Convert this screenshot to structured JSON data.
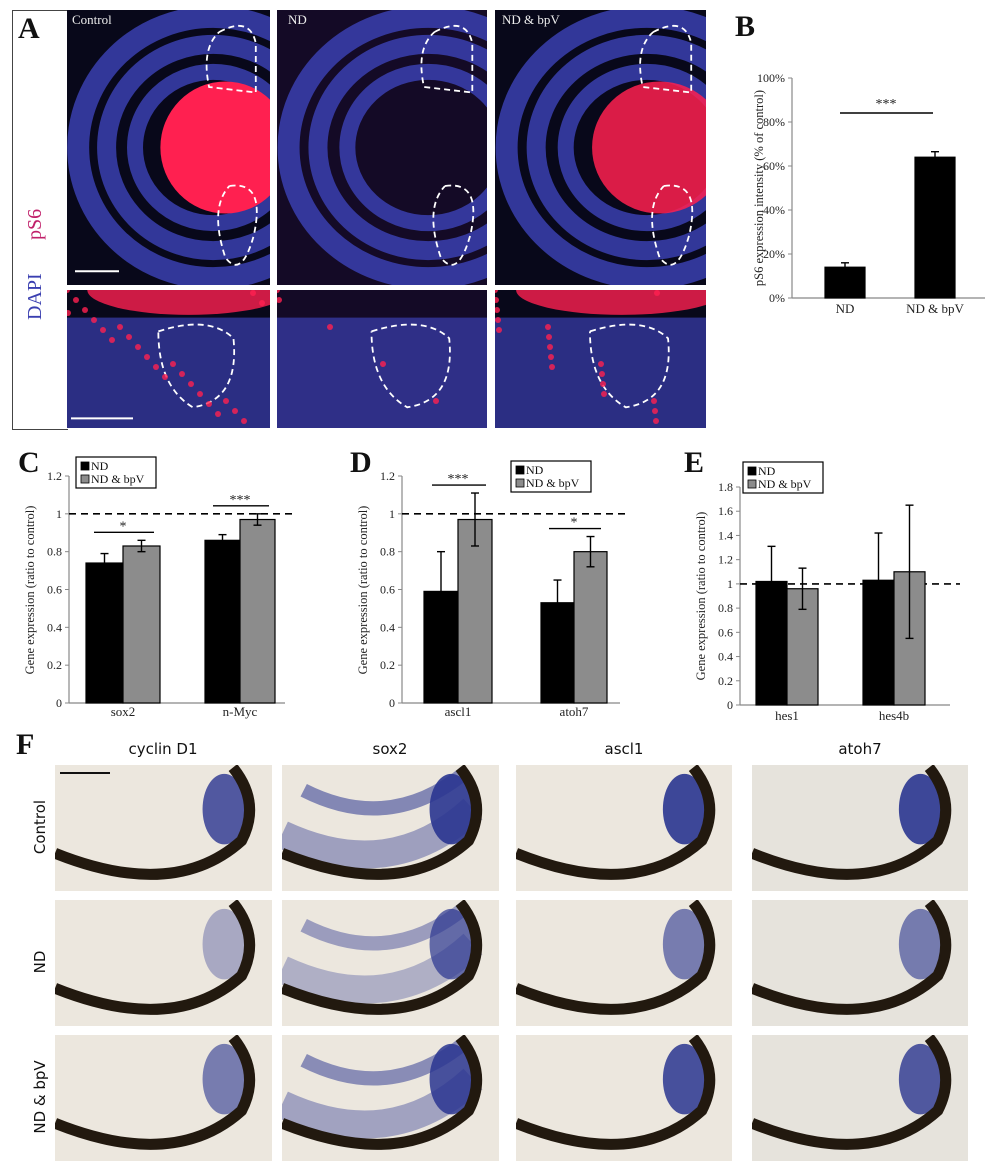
{
  "panel_a": {
    "letter": "A",
    "stain_blue": "DAPI",
    "stain_red": "pS6",
    "columns": [
      "Control",
      "ND",
      "ND & bpV"
    ],
    "colors": {
      "dapi": "#3a3fb0",
      "ps6": "#ff2050",
      "background": "#08081a"
    }
  },
  "panel_f": {
    "letter": "F",
    "columns": [
      "cyclin D1",
      "sox2",
      "ascl1",
      "atoh7"
    ],
    "rows": [
      "Control",
      "ND",
      "ND & bpV"
    ],
    "colors": {
      "stain": "#2a3590",
      "tissue": "#ece7de",
      "pigment": "#22190f"
    }
  },
  "chart_data": [
    {
      "id": "B",
      "letter": "B",
      "type": "bar",
      "ylabel": "pS6 expression intensity (% of control)",
      "categories": [
        "ND",
        "ND & bpV"
      ],
      "ylim": [
        0,
        100
      ],
      "yticks": [
        "0%",
        "20%",
        "40%",
        "60%",
        "80%",
        "100%"
      ],
      "ytick_values": [
        0,
        20,
        40,
        60,
        80,
        100
      ],
      "series": [
        {
          "values": [
            14,
            64
          ],
          "errors": [
            2,
            2.5
          ],
          "color": "#000000"
        }
      ],
      "significance": [
        {
          "text": "***",
          "between": [
            "ND",
            "ND & bpV"
          ]
        }
      ]
    },
    {
      "id": "C",
      "letter": "C",
      "type": "bar",
      "ylabel": "Gene expression  (ratio to control)",
      "categories": [
        "sox2",
        "n-Myc"
      ],
      "ylim": [
        0,
        1.2
      ],
      "yticks": [
        "0",
        "0.2",
        "0.4",
        "0.6",
        "0.8",
        "1",
        "1.2"
      ],
      "ytick_values": [
        0,
        0.2,
        0.4,
        0.6,
        0.8,
        1,
        1.2
      ],
      "reference_line": 1,
      "legend_position": "top-left",
      "series": [
        {
          "name": "ND",
          "values": [
            0.74,
            0.86
          ],
          "errors": [
            0.05,
            0.03
          ],
          "color": "#000000"
        },
        {
          "name": "ND & bpV",
          "values": [
            0.83,
            0.97
          ],
          "errors": [
            0.03,
            0.03
          ],
          "color": "#8c8c8c"
        }
      ],
      "significance": [
        {
          "text": "*",
          "category": "sox2"
        },
        {
          "text": "***",
          "category": "n-Myc"
        }
      ]
    },
    {
      "id": "D",
      "letter": "D",
      "type": "bar",
      "ylabel": "Gene expression  (ratio to control)",
      "categories": [
        "ascl1",
        "atoh7"
      ],
      "ylim": [
        0,
        1.2
      ],
      "yticks": [
        "0",
        "0.2",
        "0.4",
        "0.6",
        "0.8",
        "1",
        "1.2"
      ],
      "ytick_values": [
        0,
        0.2,
        0.4,
        0.6,
        0.8,
        1,
        1.2
      ],
      "reference_line": 1,
      "legend_position": "top-right",
      "series": [
        {
          "name": "ND",
          "values": [
            0.59,
            0.53
          ],
          "errors": [
            0.21,
            0.12
          ],
          "color": "#000000"
        },
        {
          "name": "ND & bpV",
          "values": [
            0.97,
            0.8
          ],
          "errors": [
            0.14,
            0.08
          ],
          "color": "#8c8c8c"
        }
      ],
      "significance": [
        {
          "text": "***",
          "category": "ascl1"
        },
        {
          "text": "*",
          "category": "atoh7"
        }
      ]
    },
    {
      "id": "E",
      "letter": "E",
      "type": "bar",
      "ylabel": "Gene expression  (ratio to control)",
      "categories": [
        "hes1",
        "hes4b"
      ],
      "ylim": [
        0,
        1.8
      ],
      "yticks": [
        "0",
        "0.2",
        "0.4",
        "0.6",
        "0.8",
        "1",
        "1.2",
        "1.4",
        "1.6",
        "1.8"
      ],
      "ytick_values": [
        0,
        0.2,
        0.4,
        0.6,
        0.8,
        1,
        1.2,
        1.4,
        1.6,
        1.8
      ],
      "reference_line": 1,
      "legend_position": "top-left",
      "series": [
        {
          "name": "ND",
          "values": [
            1.02,
            1.03
          ],
          "errors": [
            0.29,
            0.39
          ],
          "color": "#000000"
        },
        {
          "name": "ND & bpV",
          "values": [
            0.96,
            1.1
          ],
          "errors": [
            0.17,
            0.55
          ],
          "color": "#8c8c8c"
        }
      ],
      "significance": []
    }
  ]
}
